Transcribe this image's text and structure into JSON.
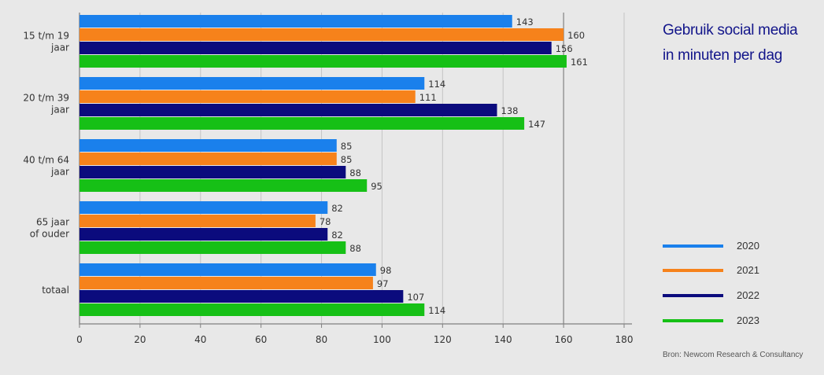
{
  "chart_data": {
    "type": "bar",
    "orientation": "horizontal",
    "title_lines": [
      "Gebruik social media",
      "in minuten per dag"
    ],
    "categories": [
      [
        "15 t/m 19",
        "jaar"
      ],
      [
        "20 t/m 39",
        "jaar"
      ],
      [
        "40 t/m 64",
        "jaar"
      ],
      [
        "65 jaar",
        "of ouder"
      ],
      [
        "totaal"
      ]
    ],
    "series": [
      {
        "name": "2020",
        "color": "#1a80ec",
        "values": [
          143,
          114,
          85,
          82,
          98
        ]
      },
      {
        "name": "2021",
        "color": "#f6821b",
        "values": [
          160,
          111,
          85,
          78,
          97
        ]
      },
      {
        "name": "2022",
        "color": "#0b0b7d",
        "values": [
          156,
          138,
          88,
          82,
          107
        ]
      },
      {
        "name": "2023",
        "color": "#16c016",
        "values": [
          161,
          147,
          95,
          88,
          114
        ]
      }
    ],
    "xlim": [
      0,
      180
    ],
    "xticks": [
      0,
      20,
      40,
      60,
      80,
      100,
      120,
      140,
      160,
      180
    ],
    "grid": true,
    "legend_position": "bottom-right",
    "source": "Bron: Newcom Research & Consultancy"
  }
}
